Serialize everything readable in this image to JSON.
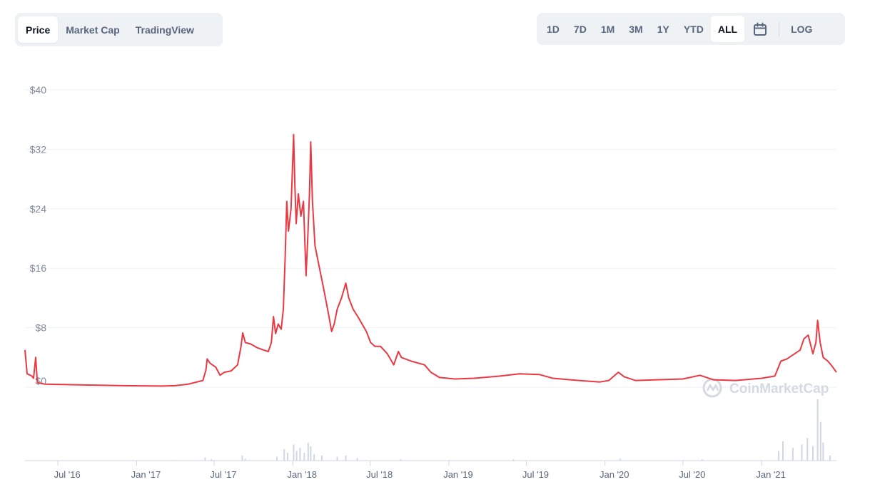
{
  "tabs": [
    {
      "label": "Price",
      "active": true
    },
    {
      "label": "Market Cap",
      "active": false
    },
    {
      "label": "TradingView",
      "active": false
    }
  ],
  "ranges": [
    {
      "label": "1D",
      "active": false
    },
    {
      "label": "7D",
      "active": false
    },
    {
      "label": "1M",
      "active": false
    },
    {
      "label": "3M",
      "active": false
    },
    {
      "label": "1Y",
      "active": false
    },
    {
      "label": "YTD",
      "active": false
    },
    {
      "label": "ALL",
      "active": true
    }
  ],
  "calendar_icon": "calendar-icon",
  "log_label": "LOG",
  "watermark": "CoinMarketCap",
  "colors": {
    "line": "#ea3943",
    "grid": "#eff2f5",
    "volume": "#cfd6e4",
    "text": "#58667e"
  },
  "chart_data": {
    "type": "line",
    "title": "",
    "xlabel": "",
    "ylabel": "",
    "ylim": [
      0,
      40
    ],
    "yticks": [
      {
        "value": 8,
        "label": "$8"
      },
      {
        "value": 16,
        "label": "$16"
      },
      {
        "value": 24,
        "label": "$24"
      },
      {
        "value": 32,
        "label": "$32"
      },
      {
        "value": 40,
        "label": "$40"
      }
    ],
    "zero_label": "$0",
    "xlim": [
      "2016-04-15",
      "2021-06-25"
    ],
    "xticks": [
      {
        "date": "2016-07-01",
        "label": "Jul '16"
      },
      {
        "date": "2017-01-01",
        "label": "Jan '17"
      },
      {
        "date": "2017-07-01",
        "label": "Jul '17"
      },
      {
        "date": "2018-01-01",
        "label": "Jan '18"
      },
      {
        "date": "2018-07-01",
        "label": "Jul '18"
      },
      {
        "date": "2019-01-01",
        "label": "Jan '19"
      },
      {
        "date": "2019-07-01",
        "label": "Jul '19"
      },
      {
        "date": "2020-01-01",
        "label": "Jan '20"
      },
      {
        "date": "2020-07-01",
        "label": "Jul '20"
      },
      {
        "date": "2021-01-01",
        "label": "Jan '21"
      }
    ],
    "grid": true,
    "series": [
      {
        "color": "#ea3943",
        "points": [
          [
            "2016-04-15",
            5.0
          ],
          [
            "2016-04-20",
            1.8
          ],
          [
            "2016-05-01",
            1.5
          ],
          [
            "2016-05-05",
            1.2
          ],
          [
            "2016-05-10",
            4.0
          ],
          [
            "2016-05-14",
            0.6
          ],
          [
            "2016-06-01",
            0.4
          ],
          [
            "2016-09-01",
            0.3
          ],
          [
            "2016-12-01",
            0.2
          ],
          [
            "2017-03-01",
            0.15
          ],
          [
            "2017-04-01",
            0.2
          ],
          [
            "2017-05-01",
            0.4
          ],
          [
            "2017-06-05",
            0.9
          ],
          [
            "2017-06-12",
            2.3
          ],
          [
            "2017-06-15",
            3.8
          ],
          [
            "2017-06-22",
            3.2
          ],
          [
            "2017-07-05",
            2.7
          ],
          [
            "2017-07-15",
            1.6
          ],
          [
            "2017-07-25",
            2.0
          ],
          [
            "2017-08-10",
            2.2
          ],
          [
            "2017-08-25",
            3.0
          ],
          [
            "2017-09-02",
            5.5
          ],
          [
            "2017-09-06",
            7.3
          ],
          [
            "2017-09-12",
            6.0
          ],
          [
            "2017-09-25",
            5.8
          ],
          [
            "2017-10-10",
            5.3
          ],
          [
            "2017-10-25",
            5.0
          ],
          [
            "2017-11-05",
            4.8
          ],
          [
            "2017-11-12",
            6.0
          ],
          [
            "2017-11-17",
            9.5
          ],
          [
            "2017-11-22",
            7.2
          ],
          [
            "2017-11-28",
            8.5
          ],
          [
            "2017-12-05",
            7.8
          ],
          [
            "2017-12-10",
            10.5
          ],
          [
            "2017-12-14",
            17.0
          ],
          [
            "2017-12-18",
            25.0
          ],
          [
            "2017-12-22",
            21.0
          ],
          [
            "2017-12-28",
            24.0
          ],
          [
            "2018-01-03",
            34.0
          ],
          [
            "2018-01-06",
            27.0
          ],
          [
            "2018-01-09",
            22.0
          ],
          [
            "2018-01-14",
            26.0
          ],
          [
            "2018-01-20",
            23.0
          ],
          [
            "2018-01-26",
            25.0
          ],
          [
            "2018-02-01",
            15.0
          ],
          [
            "2018-02-05",
            20.0
          ],
          [
            "2018-02-09",
            26.0
          ],
          [
            "2018-02-12",
            33.0
          ],
          [
            "2018-02-16",
            25.0
          ],
          [
            "2018-02-22",
            19.0
          ],
          [
            "2018-03-01",
            17.0
          ],
          [
            "2018-03-08",
            15.0
          ],
          [
            "2018-03-15",
            13.0
          ],
          [
            "2018-03-25",
            10.0
          ],
          [
            "2018-04-02",
            7.5
          ],
          [
            "2018-04-08",
            8.5
          ],
          [
            "2018-04-15",
            10.5
          ],
          [
            "2018-04-25",
            12.0
          ],
          [
            "2018-05-05",
            14.0
          ],
          [
            "2018-05-12",
            12.0
          ],
          [
            "2018-05-22",
            10.5
          ],
          [
            "2018-06-02",
            9.5
          ],
          [
            "2018-06-12",
            8.5
          ],
          [
            "2018-06-22",
            7.5
          ],
          [
            "2018-07-02",
            6.0
          ],
          [
            "2018-07-12",
            5.5
          ],
          [
            "2018-07-25",
            5.5
          ],
          [
            "2018-08-10",
            4.5
          ],
          [
            "2018-08-25",
            3.0
          ],
          [
            "2018-09-05",
            4.8
          ],
          [
            "2018-09-12",
            4.0
          ],
          [
            "2018-10-05",
            3.5
          ],
          [
            "2018-11-05",
            3.0
          ],
          [
            "2018-11-20",
            2.0
          ],
          [
            "2018-12-10",
            1.3
          ],
          [
            "2019-01-15",
            1.1
          ],
          [
            "2019-03-01",
            1.2
          ],
          [
            "2019-05-01",
            1.5
          ],
          [
            "2019-06-15",
            1.8
          ],
          [
            "2019-08-01",
            1.7
          ],
          [
            "2019-09-01",
            1.2
          ],
          [
            "2019-11-01",
            0.9
          ],
          [
            "2019-12-20",
            0.7
          ],
          [
            "2020-01-10",
            0.9
          ],
          [
            "2020-02-01",
            2.0
          ],
          [
            "2020-02-15",
            1.4
          ],
          [
            "2020-03-12",
            0.9
          ],
          [
            "2020-05-01",
            1.0
          ],
          [
            "2020-07-01",
            1.1
          ],
          [
            "2020-08-10",
            1.6
          ],
          [
            "2020-09-10",
            1.0
          ],
          [
            "2020-11-01",
            0.9
          ],
          [
            "2021-01-01",
            1.2
          ],
          [
            "2021-02-01",
            1.5
          ],
          [
            "2021-02-15",
            3.5
          ],
          [
            "2021-03-01",
            3.8
          ],
          [
            "2021-04-01",
            5.0
          ],
          [
            "2021-04-10",
            6.5
          ],
          [
            "2021-04-20",
            7.0
          ],
          [
            "2021-05-01",
            4.5
          ],
          [
            "2021-05-08",
            6.0
          ],
          [
            "2021-05-12",
            9.0
          ],
          [
            "2021-05-18",
            6.0
          ],
          [
            "2021-05-25",
            4.0
          ],
          [
            "2021-06-05",
            3.5
          ],
          [
            "2021-06-15",
            2.8
          ],
          [
            "2021-06-25",
            2.0
          ]
        ]
      }
    ],
    "volume": [
      [
        "2017-04-01",
        0.01
      ],
      [
        "2017-06-10",
        0.05
      ],
      [
        "2017-06-25",
        0.02
      ],
      [
        "2017-09-05",
        0.08
      ],
      [
        "2017-09-12",
        0.03
      ],
      [
        "2017-11-25",
        0.06
      ],
      [
        "2017-12-12",
        0.18
      ],
      [
        "2017-12-20",
        0.12
      ],
      [
        "2018-01-03",
        0.25
      ],
      [
        "2018-01-10",
        0.15
      ],
      [
        "2018-01-18",
        0.2
      ],
      [
        "2018-01-28",
        0.12
      ],
      [
        "2018-02-06",
        0.28
      ],
      [
        "2018-02-12",
        0.22
      ],
      [
        "2018-02-20",
        0.1
      ],
      [
        "2018-03-10",
        0.08
      ],
      [
        "2018-04-15",
        0.06
      ],
      [
        "2018-05-05",
        0.08
      ],
      [
        "2018-06-01",
        0.04
      ],
      [
        "2018-09-10",
        0.02
      ],
      [
        "2019-06-01",
        0.02
      ],
      [
        "2020-02-05",
        0.03
      ],
      [
        "2020-08-15",
        0.02
      ],
      [
        "2021-02-10",
        0.15
      ],
      [
        "2021-02-20",
        0.3
      ],
      [
        "2021-03-15",
        0.2
      ],
      [
        "2021-04-05",
        0.25
      ],
      [
        "2021-04-18",
        0.35
      ],
      [
        "2021-05-01",
        0.22
      ],
      [
        "2021-05-12",
        0.95
      ],
      [
        "2021-05-19",
        0.6
      ],
      [
        "2021-05-25",
        0.28
      ],
      [
        "2021-06-10",
        0.08
      ]
    ]
  }
}
